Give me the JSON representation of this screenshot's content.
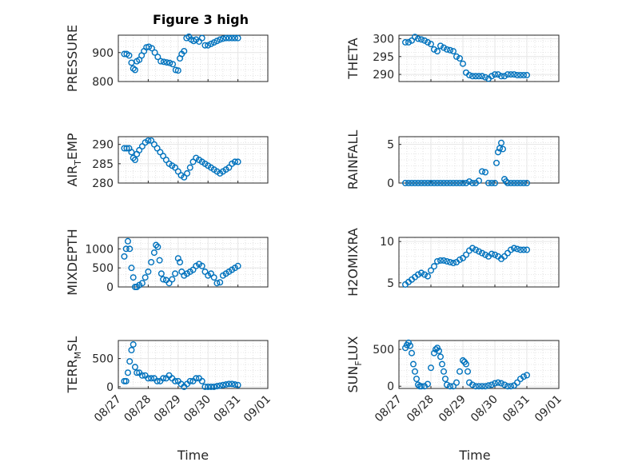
{
  "figure": {
    "title": "Figure 3 high"
  },
  "colors": {
    "series": "#0072BD",
    "axis": "#262626"
  },
  "chart_data": [
    {
      "type": "scatter",
      "ylabel": "PRESSURE",
      "ylim": [
        800,
        960
      ],
      "yticks": [
        "800",
        "900"
      ],
      "ytick_values": [
        800,
        900
      ],
      "xlim": [
        0,
        5
      ],
      "xticks": [
        "08/27",
        "08/28",
        "08/29",
        "08/30",
        "08/31",
        "09/01"
      ],
      "grid": true,
      "x": [
        0.2,
        0.28,
        0.36,
        0.44,
        0.5,
        0.56,
        0.62,
        0.7,
        0.78,
        0.86,
        0.94,
        1.02,
        1.12,
        1.22,
        1.32,
        1.42,
        1.52,
        1.62,
        1.72,
        1.82,
        1.92,
        2.0,
        2.06,
        2.12,
        2.2,
        2.28,
        2.36,
        2.44,
        2.52,
        2.6,
        2.7,
        2.8,
        2.9,
        3.0,
        3.1,
        3.2,
        3.3,
        3.4,
        3.5,
        3.6,
        3.7,
        3.8,
        3.9,
        4.0
      ],
      "y": [
        895,
        895,
        890,
        865,
        845,
        840,
        870,
        875,
        890,
        905,
        918,
        920,
        915,
        900,
        885,
        870,
        868,
        866,
        864,
        860,
        840,
        838,
        880,
        895,
        905,
        950,
        955,
        945,
        940,
        945,
        938,
        950,
        925,
        925,
        930,
        935,
        940,
        945,
        948,
        950,
        950,
        950,
        950,
        950
      ]
    },
    {
      "type": "scatter",
      "ylabel": "THETA",
      "ylim": [
        288,
        301
      ],
      "yticks": [
        "290",
        "295",
        "300"
      ],
      "ytick_values": [
        290,
        295,
        300
      ],
      "xlim": [
        0,
        5
      ],
      "xticks": [
        "08/27",
        "08/28",
        "08/29",
        "08/30",
        "08/31",
        "09/01"
      ],
      "grid": true,
      "x": [
        0.2,
        0.3,
        0.4,
        0.5,
        0.6,
        0.7,
        0.8,
        0.9,
        1.0,
        1.1,
        1.2,
        1.3,
        1.4,
        1.5,
        1.6,
        1.7,
        1.8,
        1.9,
        2.0,
        2.1,
        2.2,
        2.3,
        2.4,
        2.5,
        2.6,
        2.7,
        2.8,
        2.9,
        3.0,
        3.1,
        3.2,
        3.3,
        3.4,
        3.5,
        3.6,
        3.7,
        3.8,
        3.9,
        4.0
      ],
      "y": [
        299,
        299,
        299.5,
        300.5,
        300,
        299.8,
        299.5,
        299,
        298.5,
        297,
        296.5,
        298,
        297.5,
        297,
        296.8,
        296.5,
        295,
        294.5,
        293,
        290.5,
        289.8,
        289.5,
        289.5,
        289.5,
        289.5,
        289.2,
        288.8,
        289.5,
        290,
        290,
        289.5,
        289.5,
        290,
        290,
        290,
        289.8,
        289.8,
        289.8,
        289.8
      ]
    },
    {
      "type": "scatter",
      "ylabel": "AIR_TEMP",
      "ylim": [
        280,
        292
      ],
      "yticks": [
        "280",
        "285",
        "290"
      ],
      "ytick_values": [
        280,
        285,
        290
      ],
      "xlim": [
        0,
        5
      ],
      "xticks": [
        "08/27",
        "08/28",
        "08/29",
        "08/30",
        "08/31",
        "09/01"
      ],
      "grid": true,
      "x": [
        0.2,
        0.28,
        0.36,
        0.44,
        0.5,
        0.56,
        0.62,
        0.7,
        0.8,
        0.9,
        1.0,
        1.1,
        1.2,
        1.3,
        1.4,
        1.5,
        1.6,
        1.7,
        1.8,
        1.9,
        2.0,
        2.1,
        2.2,
        2.3,
        2.4,
        2.5,
        2.6,
        2.7,
        2.8,
        2.9,
        3.0,
        3.1,
        3.2,
        3.3,
        3.4,
        3.5,
        3.6,
        3.7,
        3.8,
        3.9,
        4.0
      ],
      "y": [
        289,
        289,
        289,
        288,
        286.5,
        286,
        287.5,
        288.5,
        289.5,
        290.5,
        291,
        291,
        290,
        289,
        288,
        287,
        286,
        285,
        284.5,
        284,
        283,
        282,
        281.5,
        282.5,
        284,
        285.5,
        286.5,
        286,
        285.5,
        285,
        284.5,
        284,
        283.5,
        283,
        282.5,
        283,
        283.5,
        284,
        285,
        285.5,
        285.5
      ]
    },
    {
      "type": "scatter",
      "ylabel": "RAINFALL",
      "ylim": [
        0,
        6
      ],
      "yticks": [
        "0",
        "5"
      ],
      "ytick_values": [
        0,
        5
      ],
      "xlim": [
        0,
        5
      ],
      "xticks": [
        "08/27",
        "08/28",
        "08/29",
        "08/30",
        "08/31",
        "09/01"
      ],
      "grid": true,
      "x": [
        0.2,
        0.3,
        0.4,
        0.5,
        0.6,
        0.7,
        0.8,
        0.9,
        1.0,
        1.1,
        1.2,
        1.3,
        1.4,
        1.5,
        1.6,
        1.7,
        1.8,
        1.9,
        2.0,
        2.1,
        2.2,
        2.3,
        2.4,
        2.5,
        2.6,
        2.7,
        2.8,
        2.9,
        3.0,
        3.05,
        3.1,
        3.15,
        3.2,
        3.25,
        3.3,
        3.35,
        3.4,
        3.5,
        3.6,
        3.7,
        3.8,
        3.9,
        4.0
      ],
      "y": [
        0,
        0,
        0,
        0,
        0,
        0,
        0,
        0,
        0,
        0,
        0,
        0,
        0,
        0,
        0,
        0,
        0,
        0,
        0,
        0,
        0.2,
        0,
        0,
        0.3,
        1.5,
        1.4,
        0,
        0,
        0,
        2.6,
        4,
        4.5,
        5.2,
        4.4,
        0.5,
        0.2,
        0,
        0,
        0,
        0,
        0,
        0,
        0
      ]
    },
    {
      "type": "scatter",
      "ylabel": "MIXDEPTH",
      "ylim": [
        0,
        1300
      ],
      "yticks": [
        "0",
        "500",
        "1000"
      ],
      "ytick_values": [
        0,
        500,
        1000
      ],
      "xlim": [
        0,
        5
      ],
      "xticks": [
        "08/27",
        "08/28",
        "08/29",
        "08/30",
        "08/31",
        "09/01"
      ],
      "grid": true,
      "x": [
        0.2,
        0.26,
        0.32,
        0.38,
        0.44,
        0.5,
        0.56,
        0.62,
        0.7,
        0.8,
        0.9,
        1.0,
        1.1,
        1.2,
        1.26,
        1.32,
        1.38,
        1.44,
        1.5,
        1.6,
        1.7,
        1.8,
        1.9,
        2.0,
        2.06,
        2.12,
        2.2,
        2.3,
        2.4,
        2.5,
        2.6,
        2.7,
        2.8,
        2.9,
        3.0,
        3.1,
        3.2,
        3.3,
        3.4,
        3.5,
        3.6,
        3.7,
        3.8,
        3.9,
        4.0
      ],
      "y": [
        800,
        1000,
        1200,
        1000,
        500,
        250,
        0,
        0,
        50,
        100,
        250,
        400,
        650,
        900,
        1100,
        1050,
        700,
        350,
        200,
        180,
        100,
        200,
        350,
        750,
        650,
        400,
        300,
        350,
        400,
        450,
        550,
        600,
        550,
        400,
        300,
        350,
        250,
        100,
        120,
        300,
        350,
        400,
        450,
        500,
        550
      ]
    },
    {
      "type": "scatter",
      "ylabel": "H2OMIXRA",
      "ylim": [
        4.5,
        10.5
      ],
      "yticks": [
        "5",
        "10"
      ],
      "ytick_values": [
        5,
        10
      ],
      "xlim": [
        0,
        5
      ],
      "xticks": [
        "08/27",
        "08/28",
        "08/29",
        "08/30",
        "08/31",
        "09/01"
      ],
      "grid": true,
      "x": [
        0.2,
        0.3,
        0.4,
        0.5,
        0.6,
        0.7,
        0.8,
        0.9,
        1.0,
        1.1,
        1.2,
        1.3,
        1.4,
        1.5,
        1.6,
        1.7,
        1.8,
        1.9,
        2.0,
        2.1,
        2.2,
        2.3,
        2.4,
        2.5,
        2.6,
        2.7,
        2.8,
        2.9,
        3.0,
        3.1,
        3.2,
        3.3,
        3.4,
        3.5,
        3.6,
        3.7,
        3.8,
        3.9,
        4.0
      ],
      "y": [
        4.8,
        5.1,
        5.4,
        5.7,
        6.0,
        6.2,
        6.0,
        5.8,
        6.5,
        7.0,
        7.6,
        7.7,
        7.7,
        7.6,
        7.5,
        7.4,
        7.5,
        7.8,
        8.0,
        8.4,
        8.9,
        9.2,
        9.0,
        8.8,
        8.6,
        8.4,
        8.2,
        8.5,
        8.4,
        8.2,
        7.9,
        8.2,
        8.6,
        9.0,
        9.2,
        9.1,
        9.0,
        9.0,
        9.0
      ]
    },
    {
      "type": "scatter",
      "ylabel": "TERR_MSL",
      "ylim": [
        -30,
        820
      ],
      "yticks": [
        "0",
        "500"
      ],
      "ytick_values": [
        0,
        500
      ],
      "xlim": [
        0,
        5
      ],
      "xticks": [
        "08/27",
        "08/28",
        "08/29",
        "08/30",
        "08/31",
        "09/01"
      ],
      "grid": true,
      "xlabel": "Time",
      "x": [
        0.2,
        0.26,
        0.32,
        0.38,
        0.44,
        0.5,
        0.56,
        0.62,
        0.7,
        0.8,
        0.9,
        1.0,
        1.1,
        1.2,
        1.3,
        1.4,
        1.5,
        1.6,
        1.7,
        1.8,
        1.9,
        2.0,
        2.1,
        2.2,
        2.3,
        2.4,
        2.5,
        2.6,
        2.7,
        2.8,
        2.9,
        3.0,
        3.1,
        3.2,
        3.3,
        3.4,
        3.5,
        3.6,
        3.7,
        3.8,
        3.9,
        4.0
      ],
      "y": [
        100,
        100,
        250,
        450,
        650,
        750,
        350,
        250,
        250,
        200,
        200,
        150,
        150,
        150,
        100,
        100,
        150,
        150,
        200,
        150,
        100,
        100,
        50,
        0,
        50,
        100,
        100,
        150,
        150,
        100,
        0,
        0,
        0,
        0,
        10,
        20,
        30,
        40,
        50,
        50,
        40,
        30
      ]
    },
    {
      "type": "scatter",
      "ylabel": "SUN_FLUX",
      "ylim": [
        -30,
        620
      ],
      "yticks": [
        "0",
        "500"
      ],
      "ytick_values": [
        0,
        500
      ],
      "xlim": [
        0,
        5
      ],
      "xticks": [
        "08/27",
        "08/28",
        "08/29",
        "08/30",
        "08/31",
        "09/01"
      ],
      "grid": true,
      "xlabel": "Time",
      "x": [
        0.2,
        0.25,
        0.3,
        0.35,
        0.4,
        0.45,
        0.5,
        0.55,
        0.6,
        0.65,
        0.7,
        0.8,
        0.9,
        1.0,
        1.1,
        1.15,
        1.2,
        1.25,
        1.3,
        1.35,
        1.4,
        1.45,
        1.5,
        1.6,
        1.7,
        1.8,
        1.9,
        2.0,
        2.05,
        2.1,
        2.15,
        2.2,
        2.3,
        2.4,
        2.5,
        2.6,
        2.7,
        2.8,
        2.9,
        3.0,
        3.1,
        3.2,
        3.3,
        3.4,
        3.5,
        3.6,
        3.7,
        3.8,
        3.9,
        4.0
      ],
      "y": [
        520,
        560,
        590,
        550,
        450,
        300,
        200,
        100,
        20,
        0,
        0,
        0,
        30,
        250,
        450,
        500,
        520,
        480,
        400,
        300,
        200,
        100,
        20,
        0,
        0,
        50,
        200,
        350,
        330,
        300,
        200,
        50,
        20,
        0,
        0,
        0,
        0,
        10,
        20,
        40,
        50,
        40,
        20,
        0,
        0,
        10,
        50,
        100,
        130,
        150
      ]
    }
  ]
}
